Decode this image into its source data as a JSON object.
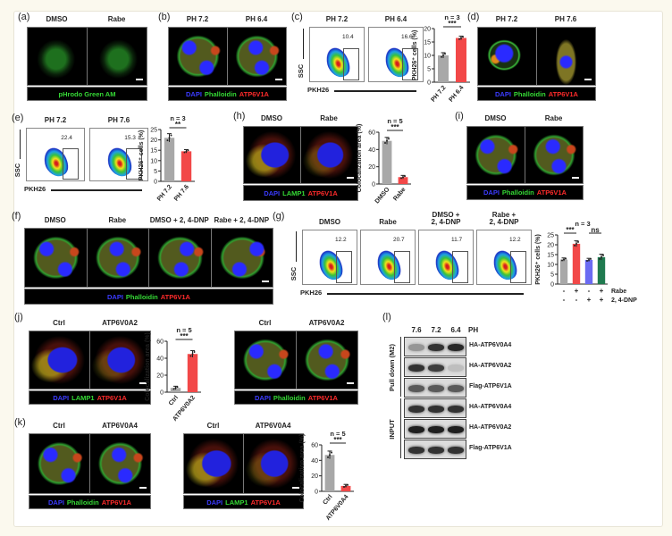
{
  "figure": {
    "micro": [
      {
        "id": "a",
        "label": "(a)",
        "columns": [
          "DMSO",
          "Rabe"
        ],
        "caption": [
          {
            "text": "pHrodo Green AM",
            "color": "#35d835"
          }
        ]
      },
      {
        "id": "b",
        "label": "(b)",
        "columns": [
          "PH 7.2",
          "PH 6.4"
        ],
        "caption": [
          {
            "text": "DAPI",
            "color": "#3b3bff"
          },
          {
            "text": "Phalloidin",
            "color": "#35d835"
          },
          {
            "text": "ATP6V1A",
            "color": "#ff2b2b"
          }
        ]
      },
      {
        "id": "d",
        "label": "(d)",
        "columns": [
          "PH 7.2",
          "PH 7.6"
        ],
        "caption": [
          {
            "text": "DAPI",
            "color": "#3b3bff"
          },
          {
            "text": "Phalloidin",
            "color": "#35d835"
          },
          {
            "text": "ATP6V1A",
            "color": "#ff2b2b"
          }
        ]
      },
      {
        "id": "h",
        "label": "(h)",
        "columns": [
          "DMSO",
          "Rabe"
        ],
        "caption": [
          {
            "text": "DAPI",
            "color": "#3b3bff"
          },
          {
            "text": "LAMP1",
            "color": "#35d835"
          },
          {
            "text": "ATP6V1A",
            "color": "#ff2b2b"
          }
        ]
      },
      {
        "id": "i",
        "label": "(i)",
        "columns": [
          "DMSO",
          "Rabe"
        ],
        "caption": [
          {
            "text": "DAPI",
            "color": "#3b3bff"
          },
          {
            "text": "Phalloidin",
            "color": "#35d835"
          },
          {
            "text": "ATP6V1A",
            "color": "#ff2b2b"
          }
        ]
      },
      {
        "id": "f",
        "label": "(f)",
        "columns": [
          "DMSO",
          "Rabe",
          "DMSO + 2, 4-DNP",
          "Rabe + 2, 4-DNP"
        ],
        "caption": [
          {
            "text": "DAPI",
            "color": "#3b3bff"
          },
          {
            "text": "Phalloidin",
            "color": "#35d835"
          },
          {
            "text": "ATP6V1A",
            "color": "#ff2b2b"
          }
        ]
      },
      {
        "id": "j1",
        "label": "(j)",
        "columns": [
          "Ctrl",
          "ATP6V0A2"
        ],
        "caption": [
          {
            "text": "DAPI",
            "color": "#3b3bff"
          },
          {
            "text": "LAMP1",
            "color": "#35d835"
          },
          {
            "text": "ATP6V1A",
            "color": "#ff2b2b"
          }
        ]
      },
      {
        "id": "j2",
        "label": "",
        "columns": [
          "Ctrl",
          "ATP6V0A2"
        ],
        "caption": [
          {
            "text": "DAPI",
            "color": "#3b3bff"
          },
          {
            "text": "Phalloidin",
            "color": "#35d835"
          },
          {
            "text": "ATP6V1A",
            "color": "#ff2b2b"
          }
        ]
      },
      {
        "id": "k1",
        "label": "(k)",
        "columns": [
          "Ctrl",
          "ATP6V0A4"
        ],
        "caption": [
          {
            "text": "DAPI",
            "color": "#3b3bff"
          },
          {
            "text": "Phalloidin",
            "color": "#35d835"
          },
          {
            "text": "ATP6V1A",
            "color": "#ff2b2b"
          }
        ]
      },
      {
        "id": "k2",
        "label": "",
        "columns": [
          "Ctrl",
          "ATP6V0A4"
        ],
        "caption": [
          {
            "text": "DAPI",
            "color": "#3b3bff"
          },
          {
            "text": "LAMP1",
            "color": "#35d835"
          },
          {
            "text": "ATP6V1A",
            "color": "#ff2b2b"
          }
        ]
      }
    ],
    "flow": [
      {
        "id": "c",
        "label": "(c)",
        "columns": [
          "PH 7.2",
          "PH 6.4"
        ],
        "gates": [
          "10.4",
          "16.6"
        ],
        "y_axis": "SSC",
        "x_axis": "PKH26"
      },
      {
        "id": "e",
        "label": "(e)",
        "columns": [
          "PH 7.2",
          "PH 7.6"
        ],
        "gates": [
          "22.4",
          "15.3"
        ],
        "y_axis": "SSC",
        "x_axis": "PKH26"
      },
      {
        "id": "g",
        "label": "(g)",
        "columns": [
          "DMSO",
          "Rabe",
          "DMSO +\n2, 4-DNP",
          "Rabe +\n2, 4-DNP"
        ],
        "gates": [
          "12.2",
          "20.7",
          "11.7",
          "12.2"
        ],
        "y_axis": "SSC",
        "x_axis": "PKH26"
      }
    ],
    "blot": {
      "label": "(l)",
      "lanes": [
        "7.6",
        "7.2",
        "6.4"
      ],
      "lane_axis": "PH",
      "groups": [
        {
          "name": "Pull down (M2)",
          "rows": [
            "HA-ATP6V0A4",
            "HA-ATP6V0A2",
            "Flag-ATP6V1A"
          ]
        },
        {
          "name": "INPUT",
          "rows": [
            "HA-ATP6V0A4",
            "HA-ATP6V0A2",
            "Flag-ATP6V1A"
          ]
        }
      ],
      "band_intensity": [
        [
          0.35,
          0.85,
          0.9
        ],
        [
          0.85,
          0.8,
          0.15
        ],
        [
          0.65,
          0.65,
          0.65
        ],
        [
          0.85,
          0.85,
          0.85
        ],
        [
          0.95,
          0.95,
          0.95
        ],
        [
          0.85,
          0.85,
          0.85
        ]
      ]
    }
  },
  "colors": {
    "gray": "#a8a8a8",
    "red": "#f24848",
    "blue": "#6b6bf2",
    "green": "#1f7a4f"
  },
  "chart_data": [
    {
      "panel": "c",
      "type": "bar",
      "categories": [
        "PH 7.2",
        "PH 6.4"
      ],
      "values": [
        10,
        16.5
      ],
      "errors": [
        1,
        0.7
      ],
      "bar_colors": [
        "gray",
        "red"
      ],
      "ylabel": "PKH26⁺ cells (%)",
      "ylim": [
        0,
        20
      ],
      "yticks": [
        0,
        5,
        10,
        15,
        20
      ],
      "n_label": "n = 3",
      "significance": [
        {
          "pair": [
            0,
            1
          ],
          "text": "***"
        }
      ]
    },
    {
      "panel": "e",
      "type": "bar",
      "categories": [
        "PH 7.2",
        "PH 7.6"
      ],
      "values": [
        21,
        14.5
      ],
      "errors": [
        2,
        0.8
      ],
      "bar_colors": [
        "gray",
        "red"
      ],
      "ylabel": "PKH26⁺ cells (%)",
      "ylim": [
        0,
        25
      ],
      "yticks": [
        0,
        5,
        10,
        15,
        20,
        25
      ],
      "n_label": "n = 3",
      "significance": [
        {
          "pair": [
            0,
            1
          ],
          "text": "**"
        }
      ]
    },
    {
      "panel": "h",
      "type": "bar",
      "categories": [
        "DMSO",
        "Rabe"
      ],
      "values": [
        50,
        8
      ],
      "errors": [
        4,
        2
      ],
      "bar_colors": [
        "gray",
        "red"
      ],
      "ylabel": "Colocalization area (%)",
      "ylim": [
        0,
        60
      ],
      "yticks": [
        0,
        20,
        40,
        60
      ],
      "n_label": "n = 5",
      "significance": [
        {
          "pair": [
            0,
            1
          ],
          "text": "***"
        }
      ]
    },
    {
      "panel": "g",
      "type": "bar",
      "categories": [
        "",
        "",
        "",
        ""
      ],
      "conditions": {
        "row_labels": [
          "Rabe",
          "2, 4-DNP"
        ],
        "values": [
          [
            "-",
            "-"
          ],
          [
            "+",
            "-"
          ],
          [
            "-",
            "+"
          ],
          [
            "+",
            "+"
          ]
        ]
      },
      "values": [
        12.5,
        20.5,
        12.3,
        13.7
      ],
      "errors": [
        0.8,
        1.5,
        0.8,
        1.5
      ],
      "bar_colors": [
        "gray",
        "red",
        "blue",
        "green"
      ],
      "ylabel": "PKH26⁺ cells (%)",
      "ylim": [
        0,
        25
      ],
      "yticks": [
        0,
        5,
        10,
        15,
        20,
        25
      ],
      "n_label": "n = 3",
      "significance": [
        {
          "pair": [
            0,
            1
          ],
          "text": "***"
        },
        {
          "pair": [
            2,
            3
          ],
          "text": "ns"
        }
      ]
    },
    {
      "panel": "j",
      "type": "bar",
      "categories": [
        "Ctrl",
        "ATP6V0A2"
      ],
      "values": [
        5,
        45
      ],
      "errors": [
        2,
        4
      ],
      "bar_colors": [
        "gray",
        "red"
      ],
      "ylabel": "Colocalization area (%)",
      "ylim": [
        0,
        60
      ],
      "yticks": [
        0,
        20,
        40,
        60
      ],
      "n_label": "n = 5",
      "significance": [
        {
          "pair": [
            0,
            1
          ],
          "text": "***"
        }
      ]
    },
    {
      "panel": "k",
      "type": "bar",
      "categories": [
        "Ctrl",
        "ATP6V0A4"
      ],
      "values": [
        47,
        7
      ],
      "errors": [
        5,
        2
      ],
      "bar_colors": [
        "gray",
        "red"
      ],
      "ylabel": "Colocalization area (%)",
      "ylim": [
        0,
        60
      ],
      "yticks": [
        0,
        20,
        40,
        60
      ],
      "n_label": "n = 5",
      "significance": [
        {
          "pair": [
            0,
            1
          ],
          "text": "***"
        }
      ]
    }
  ]
}
